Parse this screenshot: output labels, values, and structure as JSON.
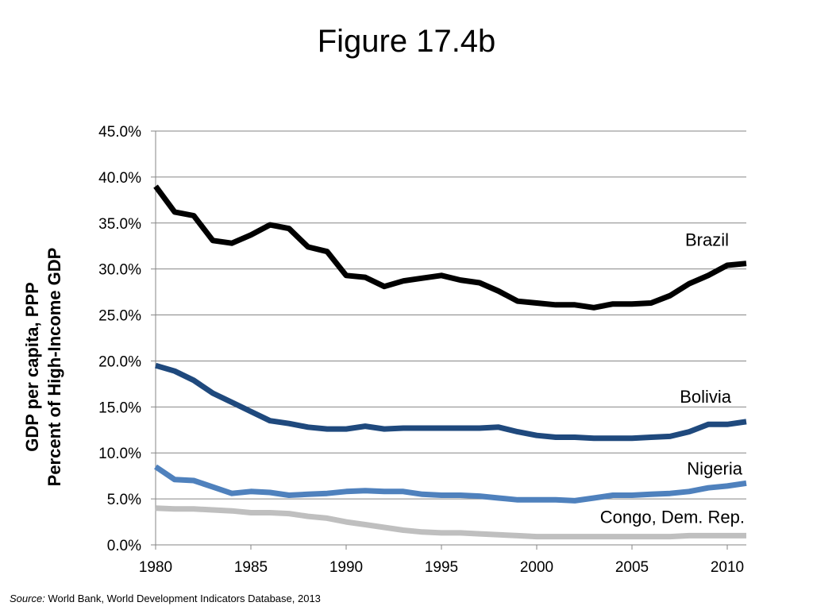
{
  "title": "Figure 17.4b",
  "source": {
    "prefix": "Source:",
    "text": "World Bank, World Development Indicators Database, 2013"
  },
  "chart_data": {
    "type": "line",
    "ylabel_line1": "GDP per capita, PPP",
    "ylabel_line2": "Percent of High-Income GDP",
    "xlim": [
      1980,
      2011
    ],
    "ylim": [
      0,
      45
    ],
    "y_ticks": [
      0,
      5,
      10,
      15,
      20,
      25,
      30,
      35,
      40,
      45
    ],
    "y_tick_labels": [
      "0.0%",
      "5.0%",
      "10.0%",
      "15.0%",
      "20.0%",
      "25.0%",
      "30.0%",
      "35.0%",
      "40.0%",
      "45.0%"
    ],
    "x_ticks": [
      1980,
      1985,
      1990,
      1995,
      2000,
      2005,
      2010
    ],
    "x_tick_labels": [
      "1980",
      "1985",
      "1990",
      "1995",
      "2000",
      "2005",
      "2010"
    ],
    "grid": true,
    "x": [
      1980,
      1981,
      1982,
      1983,
      1984,
      1985,
      1986,
      1987,
      1988,
      1989,
      1990,
      1991,
      1992,
      1993,
      1994,
      1995,
      1996,
      1997,
      1998,
      1999,
      2000,
      2001,
      2002,
      2003,
      2004,
      2005,
      2006,
      2007,
      2008,
      2009,
      2010,
      2011
    ],
    "series": [
      {
        "name": "Brazil",
        "color": "#000000",
        "values": [
          39.0,
          36.2,
          35.8,
          33.1,
          32.8,
          33.7,
          34.8,
          34.4,
          32.4,
          31.9,
          29.3,
          29.1,
          28.1,
          28.7,
          29.0,
          29.3,
          28.8,
          28.5,
          27.6,
          26.5,
          26.3,
          26.1,
          26.1,
          25.8,
          26.2,
          26.2,
          26.3,
          27.1,
          28.4,
          29.3,
          30.4,
          30.6
        ]
      },
      {
        "name": "Bolivia",
        "color": "#1f497d",
        "values": [
          19.5,
          18.9,
          17.9,
          16.5,
          15.5,
          14.5,
          13.5,
          13.2,
          12.8,
          12.6,
          12.6,
          12.9,
          12.6,
          12.7,
          12.7,
          12.7,
          12.7,
          12.7,
          12.8,
          12.3,
          11.9,
          11.7,
          11.7,
          11.6,
          11.6,
          11.6,
          11.7,
          11.8,
          12.3,
          13.1,
          13.1,
          13.4
        ]
      },
      {
        "name": "Nigeria",
        "color": "#4f81bd",
        "values": [
          8.5,
          7.1,
          7.0,
          6.3,
          5.6,
          5.8,
          5.7,
          5.4,
          5.5,
          5.6,
          5.8,
          5.9,
          5.8,
          5.8,
          5.5,
          5.4,
          5.4,
          5.3,
          5.1,
          4.9,
          4.9,
          4.9,
          4.8,
          5.1,
          5.4,
          5.4,
          5.5,
          5.6,
          5.8,
          6.2,
          6.4,
          6.7
        ]
      },
      {
        "name": "Congo, Dem. Rep.",
        "color": "#bfbfbf",
        "values": [
          4.0,
          3.9,
          3.9,
          3.8,
          3.7,
          3.5,
          3.5,
          3.4,
          3.1,
          2.9,
          2.5,
          2.2,
          1.9,
          1.6,
          1.4,
          1.3,
          1.3,
          1.2,
          1.1,
          1.0,
          0.9,
          0.9,
          0.9,
          0.9,
          0.9,
          0.9,
          0.9,
          0.9,
          1.0,
          1.0,
          1.0,
          1.0
        ]
      }
    ]
  }
}
